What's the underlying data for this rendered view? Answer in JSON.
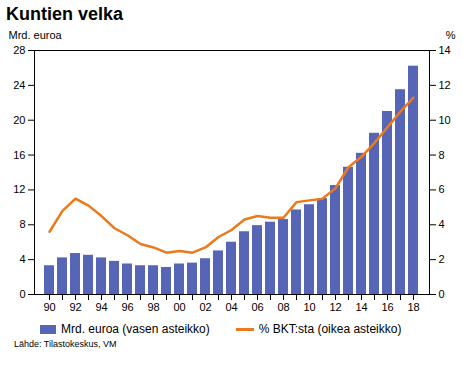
{
  "chart_data": {
    "type": "bar",
    "title": "Kuntien velka",
    "y_label": "Mrd. euroa",
    "y2_label": "%",
    "source": "Lähde: Tilastokeskus, VM",
    "categories": [
      "90",
      null,
      "92",
      null,
      "94",
      null,
      "96",
      null,
      "98",
      null,
      "00",
      null,
      "02",
      null,
      "04",
      null,
      "06",
      null,
      "08",
      null,
      "10",
      null,
      "12",
      null,
      "14",
      null,
      "16",
      null,
      "18"
    ],
    "series": [
      {
        "name": "Mrd. euroa (vasen asteikko)",
        "type": "bar",
        "color": "#5665b6",
        "values": [
          3.3,
          4.2,
          4.7,
          4.5,
          4.2,
          3.8,
          3.5,
          3.3,
          3.3,
          3.1,
          3.5,
          3.6,
          4.1,
          5.0,
          6.0,
          7.2,
          7.9,
          8.3,
          8.6,
          9.7,
          10.3,
          11.0,
          12.5,
          14.6,
          16.2,
          18.5,
          21.0,
          23.5,
          26.2
        ]
      },
      {
        "name": "% BKT:sta (oikea asteikko)",
        "type": "line",
        "axis": "y2",
        "color": "#ec7a1c",
        "values": [
          3.6,
          4.8,
          5.5,
          5.1,
          4.5,
          3.8,
          3.4,
          2.9,
          2.7,
          2.4,
          2.5,
          2.4,
          2.7,
          3.3,
          3.7,
          4.3,
          4.5,
          4.4,
          4.4,
          5.3,
          5.4,
          5.5,
          6.1,
          7.3,
          7.9,
          8.7,
          9.6,
          10.5,
          11.3
        ]
      }
    ],
    "ylim": [
      0,
      28
    ],
    "yticks": [
      0,
      4,
      8,
      12,
      16,
      20,
      24,
      28
    ],
    "y2lim": [
      0,
      14
    ],
    "y2ticks": [
      0,
      2,
      4,
      6,
      8,
      10,
      12,
      14
    ],
    "grid": false
  }
}
